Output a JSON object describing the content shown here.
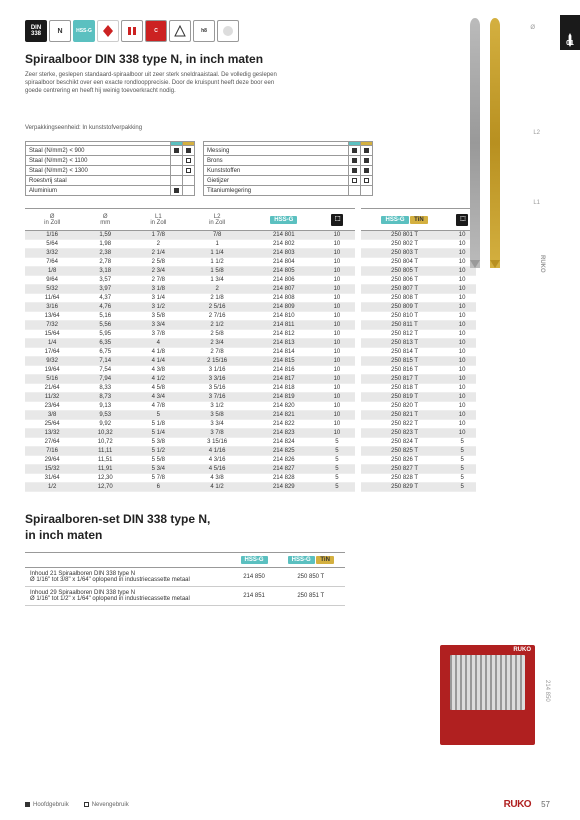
{
  "page": {
    "tab": "01",
    "number": "57"
  },
  "iconrow": {
    "din": "DIN\n338",
    "n": "N",
    "hssg": "HSS-G"
  },
  "header": {
    "title": "Spiraalboor DIN 338 type N, in inch maten",
    "desc": "Zeer sterke, geslepen standaard-spiraalboor uit zeer sterk sneldraaistaal. De volledig geslepen spiraalboor beschikt over een exacte rondloopprecisie. Door de kruispunt heeft deze boor een goede centrering en heeft hij weinig toevoerkracht nodig.",
    "packing": "Verpakkingseenheid: In kunststofverpakking"
  },
  "materials": {
    "left": [
      {
        "name": "Staal (N/mm2) < 900",
        "a": "f",
        "b": "f"
      },
      {
        "name": "Staal (N/mm2) < 1100",
        "a": "",
        "b": "e"
      },
      {
        "name": "Staal (N/mm2) < 1300",
        "a": "",
        "b": "e"
      },
      {
        "name": "Roestvrij staal",
        "a": "",
        "b": ""
      },
      {
        "name": "Aluminium",
        "a": "f",
        "b": ""
      }
    ],
    "right": [
      {
        "name": "Messing",
        "a": "f",
        "b": "f"
      },
      {
        "name": "Brons",
        "a": "f",
        "b": "f"
      },
      {
        "name": "Kunststoffen",
        "a": "f",
        "b": "f"
      },
      {
        "name": "Gietijzer",
        "a": "e",
        "b": "e"
      },
      {
        "name": "Titaniumlegering",
        "a": "",
        "b": ""
      }
    ]
  },
  "table": {
    "headers": {
      "zoll": "Ø\nin Zoll",
      "mm": "Ø\nmm",
      "l1": "L1\nin Zoll",
      "l2": "L2\nin Zoll",
      "hssg": "HSS-G",
      "tin": "TiN"
    },
    "rows": [
      {
        "zoll": "1/16",
        "mm": "1,59",
        "l1": "1 7/8",
        "l2": "7/8",
        "a1": "214 801",
        "q1": "10",
        "a2": "250 801 T",
        "q2": "10",
        "s": 1
      },
      {
        "zoll": "5/64",
        "mm": "1,98",
        "l1": "2",
        "l2": "1",
        "a1": "214 802",
        "q1": "10",
        "a2": "250 802 T",
        "q2": "10",
        "s": 0
      },
      {
        "zoll": "3/32",
        "mm": "2,38",
        "l1": "2 1/4",
        "l2": "1 1/4",
        "a1": "214 803",
        "q1": "10",
        "a2": "250 803 T",
        "q2": "10",
        "s": 1
      },
      {
        "zoll": "7/64",
        "mm": "2,78",
        "l1": "2 5/8",
        "l2": "1 1/2",
        "a1": "214 804",
        "q1": "10",
        "a2": "250 804 T",
        "q2": "10",
        "s": 0
      },
      {
        "zoll": "1/8",
        "mm": "3,18",
        "l1": "2 3/4",
        "l2": "1 5/8",
        "a1": "214 805",
        "q1": "10",
        "a2": "250 805 T",
        "q2": "10",
        "s": 1
      },
      {
        "zoll": "9/64",
        "mm": "3,57",
        "l1": "2 7/8",
        "l2": "1 3/4",
        "a1": "214 806",
        "q1": "10",
        "a2": "250 806 T",
        "q2": "10",
        "s": 0
      },
      {
        "zoll": "5/32",
        "mm": "3,97",
        "l1": "3 1/8",
        "l2": "2",
        "a1": "214 807",
        "q1": "10",
        "a2": "250 807 T",
        "q2": "10",
        "s": 1
      },
      {
        "zoll": "11/64",
        "mm": "4,37",
        "l1": "3 1/4",
        "l2": "2 1/8",
        "a1": "214 808",
        "q1": "10",
        "a2": "250 808 T",
        "q2": "10",
        "s": 0
      },
      {
        "zoll": "3/16",
        "mm": "4,76",
        "l1": "3 1/2",
        "l2": "2 5/16",
        "a1": "214 809",
        "q1": "10",
        "a2": "250 809 T",
        "q2": "10",
        "s": 1
      },
      {
        "zoll": "13/64",
        "mm": "5,16",
        "l1": "3 5/8",
        "l2": "2 7/16",
        "a1": "214 810",
        "q1": "10",
        "a2": "250 810 T",
        "q2": "10",
        "s": 0
      },
      {
        "zoll": "7/32",
        "mm": "5,56",
        "l1": "3 3/4",
        "l2": "2 1/2",
        "a1": "214 811",
        "q1": "10",
        "a2": "250 811 T",
        "q2": "10",
        "s": 1
      },
      {
        "zoll": "15/64",
        "mm": "5,95",
        "l1": "3 7/8",
        "l2": "2 5/8",
        "a1": "214 812",
        "q1": "10",
        "a2": "250 812 T",
        "q2": "10",
        "s": 0
      },
      {
        "zoll": "1/4",
        "mm": "6,35",
        "l1": "4",
        "l2": "2 3/4",
        "a1": "214 813",
        "q1": "10",
        "a2": "250 813 T",
        "q2": "10",
        "s": 1
      },
      {
        "zoll": "17/64",
        "mm": "6,75",
        "l1": "4 1/8",
        "l2": "2 7/8",
        "a1": "214 814",
        "q1": "10",
        "a2": "250 814 T",
        "q2": "10",
        "s": 0
      },
      {
        "zoll": "9/32",
        "mm": "7,14",
        "l1": "4 1/4",
        "l2": "2 15/16",
        "a1": "214 815",
        "q1": "10",
        "a2": "250 815 T",
        "q2": "10",
        "s": 1
      },
      {
        "zoll": "19/64",
        "mm": "7,54",
        "l1": "4 3/8",
        "l2": "3 1/16",
        "a1": "214 816",
        "q1": "10",
        "a2": "250 816 T",
        "q2": "10",
        "s": 0
      },
      {
        "zoll": "5/16",
        "mm": "7,94",
        "l1": "4 1/2",
        "l2": "3 3/16",
        "a1": "214 817",
        "q1": "10",
        "a2": "250 817 T",
        "q2": "10",
        "s": 1
      },
      {
        "zoll": "21/64",
        "mm": "8,33",
        "l1": "4 5/8",
        "l2": "3 5/16",
        "a1": "214 818",
        "q1": "10",
        "a2": "250 818 T",
        "q2": "10",
        "s": 0
      },
      {
        "zoll": "11/32",
        "mm": "8,73",
        "l1": "4 3/4",
        "l2": "3 7/16",
        "a1": "214 819",
        "q1": "10",
        "a2": "250 819 T",
        "q2": "10",
        "s": 1
      },
      {
        "zoll": "23/64",
        "mm": "9,13",
        "l1": "4 7/8",
        "l2": "3 1/2",
        "a1": "214 820",
        "q1": "10",
        "a2": "250 820 T",
        "q2": "10",
        "s": 0
      },
      {
        "zoll": "3/8",
        "mm": "9,53",
        "l1": "5",
        "l2": "3 5/8",
        "a1": "214 821",
        "q1": "10",
        "a2": "250 821 T",
        "q2": "10",
        "s": 1
      },
      {
        "zoll": "25/64",
        "mm": "9,92",
        "l1": "5 1/8",
        "l2": "3 3/4",
        "a1": "214 822",
        "q1": "10",
        "a2": "250 822 T",
        "q2": "10",
        "s": 0
      },
      {
        "zoll": "13/32",
        "mm": "10,32",
        "l1": "5 1/4",
        "l2": "3 7/8",
        "a1": "214 823",
        "q1": "10",
        "a2": "250 823 T",
        "q2": "10",
        "s": 1
      },
      {
        "zoll": "27/64",
        "mm": "10,72",
        "l1": "5 3/8",
        "l2": "3 15/16",
        "a1": "214 824",
        "q1": "5",
        "a2": "250 824 T",
        "q2": "5",
        "s": 0
      },
      {
        "zoll": "7/16",
        "mm": "11,11",
        "l1": "5 1/2",
        "l2": "4 1/16",
        "a1": "214 825",
        "q1": "5",
        "a2": "250 825 T",
        "q2": "5",
        "s": 1
      },
      {
        "zoll": "29/64",
        "mm": "11,51",
        "l1": "5 5/8",
        "l2": "4 3/16",
        "a1": "214 826",
        "q1": "5",
        "a2": "250 826 T",
        "q2": "5",
        "s": 0
      },
      {
        "zoll": "15/32",
        "mm": "11,91",
        "l1": "5 3/4",
        "l2": "4 5/16",
        "a1": "214 827",
        "q1": "5",
        "a2": "250 827 T",
        "q2": "5",
        "s": 1
      },
      {
        "zoll": "31/64",
        "mm": "12,30",
        "l1": "5 7/8",
        "l2": "4 3/8",
        "a1": "214 828",
        "q1": "5",
        "a2": "250 828 T",
        "q2": "5",
        "s": 0
      },
      {
        "zoll": "1/2",
        "mm": "12,70",
        "l1": "6",
        "l2": "4 1/2",
        "a1": "214 829",
        "q1": "5",
        "a2": "250 829 T",
        "q2": "5",
        "s": 1
      }
    ]
  },
  "set": {
    "title1": "Spiraalboren-set DIN 338 type N,",
    "title2": "in inch maten",
    "rows": [
      {
        "desc": "Inhoud 21 Spiraalboren DIN 338 type N\nØ 1/16\" tot 3/8\" x 1/64\" oplopend in industriecassette metaal",
        "a1": "214 850",
        "a2": "250 850 T"
      },
      {
        "desc": "Inhoud 29 Spiraalboren DIN 338 type N\nØ 1/16\" tot 1/2\" x 1/64\" oplopend in industriecassette metaal",
        "a1": "214 851",
        "a2": "250 851 T"
      }
    ],
    "side": "214 850"
  },
  "footer": {
    "main": "Hoofdgebruik",
    "side": "Nevengebruik",
    "brand": "RUKO"
  }
}
